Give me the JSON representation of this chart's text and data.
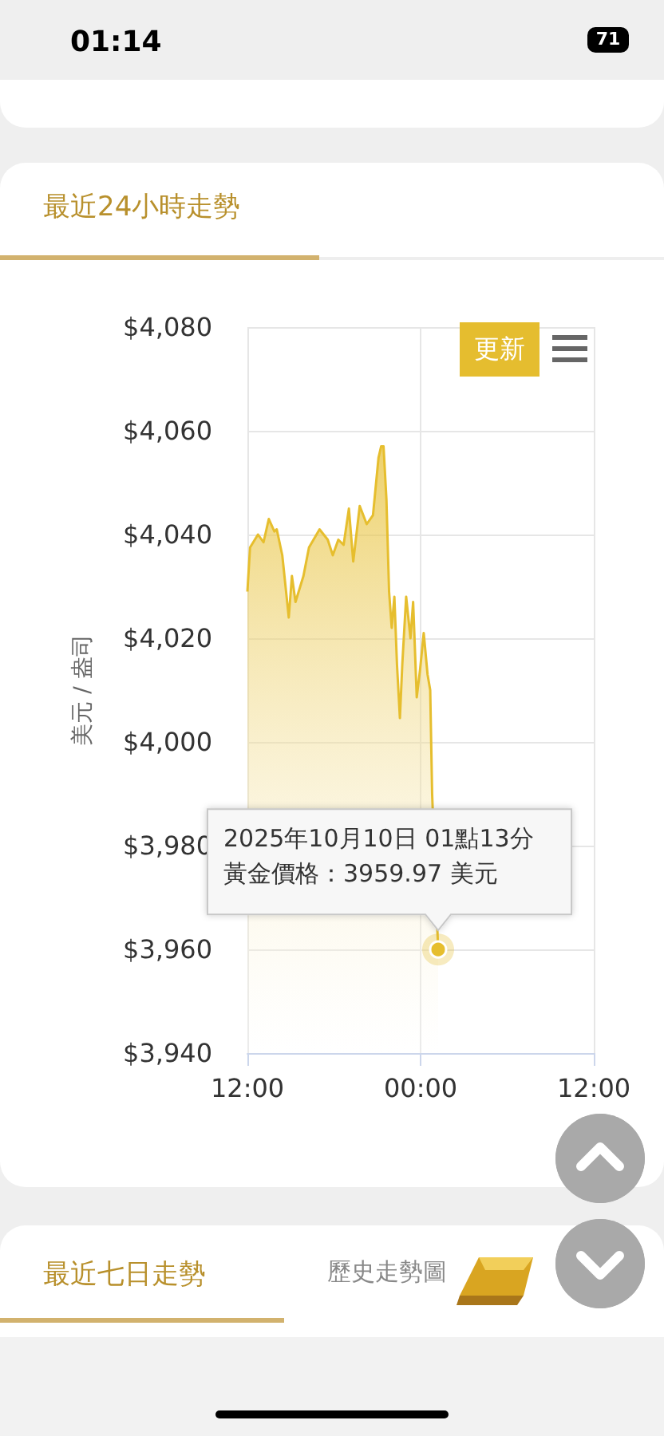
{
  "chart_data": {
    "type": "area",
    "title": "最近24小時走勢",
    "ylabel": "美元 / 盎司",
    "x": [
      "2025-10-09T12:00",
      "2025-10-09T12:11",
      "2025-10-09T12:44",
      "2025-10-09T13:07",
      "2025-10-09T13:29",
      "2025-10-09T13:52",
      "2025-10-09T14:02",
      "2025-10-09T14:25",
      "2025-10-09T14:52",
      "2025-10-09T15:05",
      "2025-10-09T15:20",
      "2025-10-09T15:53",
      "2025-10-09T16:16",
      "2025-10-09T17:00",
      "2025-10-09T17:34",
      "2025-10-09T17:55",
      "2025-10-09T18:18",
      "2025-10-09T18:40",
      "2025-10-09T19:02",
      "2025-10-09T19:20",
      "2025-10-09T19:47",
      "2025-10-09T20:16",
      "2025-10-09T20:42",
      "2025-10-09T21:05",
      "2025-10-09T21:16",
      "2025-10-09T21:26",
      "2025-10-09T21:38",
      "2025-10-09T21:49",
      "2025-10-09T22:00",
      "2025-10-09T22:11",
      "2025-10-09T22:22",
      "2025-10-09T22:34",
      "2025-10-09T22:44",
      "2025-10-09T23:00",
      "2025-10-09T23:18",
      "2025-10-09T23:29",
      "2025-10-09T23:44",
      "2025-10-09T23:58",
      "2025-10-10T00:13",
      "2025-10-10T00:29",
      "2025-10-10T00:40",
      "2025-10-10T00:48",
      "2025-10-10T01:13"
    ],
    "series": [
      {
        "color": "#e6be2e",
        "values": [
          4029,
          4037.5,
          4040,
          4038.5,
          4043,
          4040.6,
          4041,
          4036,
          4024,
          4032,
          4027,
          4032,
          4037.5,
          4041,
          4039,
          4036,
          4039,
          4038,
          4045,
          4034.8,
          4045.5,
          4042,
          4043.7,
          4054.8,
          4057,
          4057,
          4046.8,
          4029,
          4022,
          4028,
          4014.8,
          4004.6,
          4015,
          4028,
          4020,
          4027,
          4008.6,
          4014,
          4021,
          4013,
          4010,
          3990,
          3959.97
        ]
      }
    ],
    "xlim": [
      "2025-10-09T12:00",
      "2025-10-10T12:00"
    ],
    "xticks": [
      {
        "value": "2025-10-09T12:00",
        "label": "12:00"
      },
      {
        "value": "2025-10-10T00:00",
        "label": "00:00"
      },
      {
        "value": "2025-10-10T12:00",
        "label": "12:00"
      }
    ],
    "ylim": [
      3940,
      4080
    ],
    "yticks": [
      {
        "value": 3940,
        "label": "$3,940"
      },
      {
        "value": 3960,
        "label": "$3,960"
      },
      {
        "value": 3980,
        "label": "$3,980"
      },
      {
        "value": 4000,
        "label": "$4,000"
      },
      {
        "value": 4020,
        "label": "$4,020"
      },
      {
        "value": 4040,
        "label": "$4,040"
      },
      {
        "value": 4060,
        "label": "$4,060"
      },
      {
        "value": 4080,
        "label": "$4,080"
      }
    ],
    "grid": true,
    "marker": "none",
    "annotations": [
      "2025年10月10日 01點13分",
      "黃金價格：3959.97 美元",
      "01:14",
      "71",
      "更新",
      "最近七日走勢",
      "歷史走勢圖"
    ]
  }
}
